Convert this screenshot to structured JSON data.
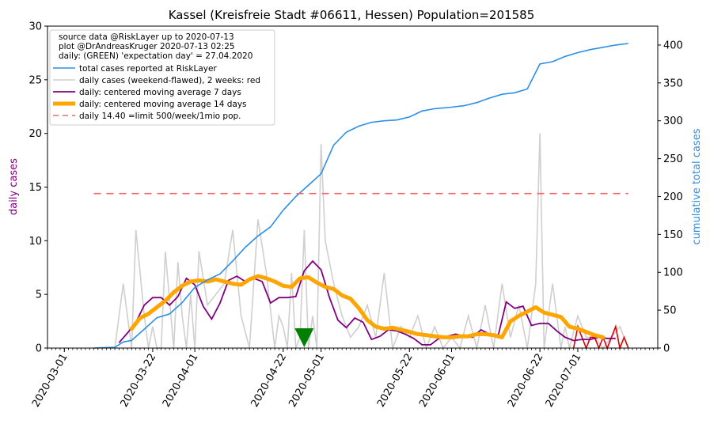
{
  "chart_data": {
    "type": "line",
    "title": "Kassel (Kreisfreie Stadt #06611, Hessen) Population=201585",
    "ylabel_left": "daily cases",
    "ylabel_right": "cumulative total cases",
    "ylim_left": [
      0,
      30
    ],
    "ylim_right": [
      0,
      425
    ],
    "xlim": [
      "2020-02-26",
      "2020-07-20"
    ],
    "grid": false,
    "legend_placement": "top-left",
    "left_ticks": [
      "0",
      "5",
      "10",
      "15",
      "20",
      "25",
      "30"
    ],
    "right_ticks": [
      "0",
      "50",
      "100",
      "150",
      "200",
      "250",
      "300",
      "350",
      "400"
    ],
    "x_ticks": [
      "2020-03-01",
      "2020-03-22",
      "2020-04-01",
      "2020-04-22",
      "2020-05-01",
      "2020-05-22",
      "2020-06-01",
      "2020-06-22",
      "2020-07-01"
    ],
    "legend_header": [
      "source data @RiskLayer up to 2020-07-13",
      "plot @DrAndreasKruger 2020-07-13 02:25",
      "daily: (GREEN) 'expectation day' = 27.04.2020"
    ],
    "legend": [
      {
        "label": "total cases reported at RiskLayer",
        "color": "#2a8fe6",
        "style": "line"
      },
      {
        "label": "daily cases (weekend-flawed), 2 weeks: red",
        "color": "#cfcfcf",
        "style": "line"
      },
      {
        "label": "daily: centered moving average 7 days",
        "color": "#800080",
        "style": "line"
      },
      {
        "label": "daily: centered moving average 14 days",
        "color": "#ffa500",
        "style": "thick"
      },
      {
        "label": "daily 14.40 =limit 500/week/1mio pop.",
        "color": "#ee6b6b",
        "style": "dashed"
      }
    ],
    "limit_line": {
      "value": 14.4,
      "start": "2020-03-08",
      "end": "2020-07-13"
    },
    "expectation_day": "2020-04-27",
    "series": [
      {
        "name": "total cases reported at RiskLayer",
        "axis": "right",
        "color": "#2a8fe6",
        "x": [
          "2020-03-08",
          "2020-03-13",
          "2020-03-15",
          "2020-03-17",
          "2020-03-20",
          "2020-03-23",
          "2020-03-26",
          "2020-03-29",
          "2020-04-01",
          "2020-04-04",
          "2020-04-07",
          "2020-04-10",
          "2020-04-13",
          "2020-04-16",
          "2020-04-19",
          "2020-04-22",
          "2020-04-25",
          "2020-04-28",
          "2020-05-01",
          "2020-05-04",
          "2020-05-07",
          "2020-05-10",
          "2020-05-13",
          "2020-05-16",
          "2020-05-19",
          "2020-05-22",
          "2020-05-25",
          "2020-05-28",
          "2020-06-01",
          "2020-06-04",
          "2020-06-07",
          "2020-06-10",
          "2020-06-13",
          "2020-06-16",
          "2020-06-19",
          "2020-06-22",
          "2020-06-25",
          "2020-06-28",
          "2020-07-01",
          "2020-07-04",
          "2020-07-07",
          "2020-07-10",
          "2020-07-13"
        ],
        "values": [
          0,
          1,
          8,
          10,
          25,
          40,
          45,
          60,
          80,
          90,
          98,
          115,
          133,
          148,
          160,
          182,
          200,
          215,
          230,
          268,
          285,
          293,
          298,
          300,
          301,
          305,
          313,
          316,
          318,
          320,
          324,
          330,
          335,
          337,
          342,
          375,
          378,
          385,
          390,
          394,
          397,
          400,
          402
        ]
      },
      {
        "name": "daily cases (weekend-flawed), 2 weeks: red",
        "axis": "left",
        "color": "#cfcfcf",
        "color_recent": "#e00000",
        "x": [
          "2020-03-13",
          "2020-03-15",
          "2020-03-17",
          "2020-03-18",
          "2020-03-19",
          "2020-03-20",
          "2020-03-21",
          "2020-03-22",
          "2020-03-23",
          "2020-03-24",
          "2020-03-25",
          "2020-03-27",
          "2020-03-28",
          "2020-03-29",
          "2020-03-30",
          "2020-03-31",
          "2020-04-01",
          "2020-04-02",
          "2020-04-04",
          "2020-04-06",
          "2020-04-08",
          "2020-04-10",
          "2020-04-12",
          "2020-04-14",
          "2020-04-16",
          "2020-04-18",
          "2020-04-20",
          "2020-04-21",
          "2020-04-22",
          "2020-04-23",
          "2020-04-24",
          "2020-04-25",
          "2020-04-26",
          "2020-04-27",
          "2020-04-28",
          "2020-04-29",
          "2020-04-30",
          "2020-05-01",
          "2020-05-02",
          "2020-05-04",
          "2020-05-06",
          "2020-05-08",
          "2020-05-10",
          "2020-05-12",
          "2020-05-14",
          "2020-05-16",
          "2020-05-18",
          "2020-05-20",
          "2020-05-22",
          "2020-05-24",
          "2020-05-26",
          "2020-05-28",
          "2020-05-30",
          "2020-06-01",
          "2020-06-03",
          "2020-06-05",
          "2020-06-07",
          "2020-06-09",
          "2020-06-11",
          "2020-06-13",
          "2020-06-15",
          "2020-06-17",
          "2020-06-19",
          "2020-06-21",
          "2020-06-22",
          "2020-06-23",
          "2020-06-25",
          "2020-06-27",
          "2020-06-28",
          "2020-06-29",
          "2020-07-01",
          "2020-07-03",
          "2020-07-05",
          "2020-07-07",
          "2020-07-09",
          "2020-07-11",
          "2020-07-13"
        ],
        "values": [
          0,
          6,
          0,
          11,
          7,
          3,
          0,
          2,
          0,
          0,
          9,
          0,
          8,
          3,
          0,
          5,
          0,
          9,
          4,
          5,
          6,
          11,
          3,
          0,
          12,
          7,
          0,
          3,
          2,
          0,
          7,
          0,
          1,
          11,
          0,
          3,
          0,
          19,
          10,
          6,
          3,
          1,
          2,
          4,
          1,
          7,
          0,
          2,
          1,
          3,
          0,
          2,
          0,
          1,
          0,
          3,
          0,
          4,
          0,
          6,
          1,
          4,
          0,
          6,
          20,
          0,
          6,
          0,
          2,
          0,
          3,
          1,
          1,
          0,
          1,
          2,
          0
        ],
        "recent_x": [
          "2020-06-30",
          "2020-07-01",
          "2020-07-02",
          "2020-07-03",
          "2020-07-04",
          "2020-07-05",
          "2020-07-06",
          "2020-07-07",
          "2020-07-08",
          "2020-07-09",
          "2020-07-10",
          "2020-07-11",
          "2020-07-12",
          "2020-07-13"
        ],
        "recent_values": [
          0,
          2,
          1,
          0,
          1,
          1,
          0,
          1,
          0,
          1,
          2,
          0,
          1,
          0
        ]
      },
      {
        "name": "daily: centered moving average 7 days",
        "axis": "left",
        "color": "#800080",
        "x": [
          "2020-03-14",
          "2020-03-16",
          "2020-03-18",
          "2020-03-20",
          "2020-03-22",
          "2020-03-24",
          "2020-03-26",
          "2020-03-28",
          "2020-03-30",
          "2020-04-01",
          "2020-04-03",
          "2020-04-05",
          "2020-04-07",
          "2020-04-09",
          "2020-04-11",
          "2020-04-13",
          "2020-04-15",
          "2020-04-17",
          "2020-04-19",
          "2020-04-21",
          "2020-04-23",
          "2020-04-25",
          "2020-04-27",
          "2020-04-29",
          "2020-05-01",
          "2020-05-03",
          "2020-05-05",
          "2020-05-07",
          "2020-05-09",
          "2020-05-11",
          "2020-05-13",
          "2020-05-15",
          "2020-05-17",
          "2020-05-19",
          "2020-05-21",
          "2020-05-23",
          "2020-05-25",
          "2020-05-27",
          "2020-05-29",
          "2020-05-31",
          "2020-06-02",
          "2020-06-04",
          "2020-06-06",
          "2020-06-08",
          "2020-06-10",
          "2020-06-12",
          "2020-06-14",
          "2020-06-16",
          "2020-06-18",
          "2020-06-20",
          "2020-06-22",
          "2020-06-24",
          "2020-06-26",
          "2020-06-28",
          "2020-06-30",
          "2020-07-02",
          "2020-07-04",
          "2020-07-06",
          "2020-07-08",
          "2020-07-10"
        ],
        "values": [
          0.5,
          1.4,
          2.4,
          4.0,
          4.7,
          4.7,
          4.0,
          4.8,
          6.5,
          5.9,
          3.9,
          2.7,
          4.2,
          6.3,
          6.7,
          6.2,
          6.5,
          6.2,
          4.2,
          4.7,
          4.7,
          4.8,
          7.2,
          8.1,
          7.3,
          4.7,
          2.6,
          1.9,
          2.8,
          2.4,
          0.8,
          1.1,
          1.7,
          1.6,
          1.3,
          0.9,
          0.3,
          0.3,
          0.9,
          1.1,
          1.3,
          1.1,
          1.0,
          1.7,
          1.3,
          1.0,
          4.3,
          3.7,
          3.9,
          2.1,
          2.3,
          2.3,
          1.6,
          1.0,
          0.7,
          0.8,
          0.8,
          1.0,
          0.9,
          0.9
        ]
      },
      {
        "name": "daily: centered moving average 14 days",
        "axis": "left",
        "color": "#ffa500",
        "x": [
          "2020-03-17",
          "2020-03-19",
          "2020-03-21",
          "2020-03-23",
          "2020-03-25",
          "2020-03-27",
          "2020-03-29",
          "2020-03-31",
          "2020-04-02",
          "2020-04-04",
          "2020-04-06",
          "2020-04-08",
          "2020-04-10",
          "2020-04-12",
          "2020-04-14",
          "2020-04-16",
          "2020-04-18",
          "2020-04-20",
          "2020-04-22",
          "2020-04-24",
          "2020-04-26",
          "2020-04-28",
          "2020-04-30",
          "2020-05-02",
          "2020-05-04",
          "2020-05-06",
          "2020-05-08",
          "2020-05-10",
          "2020-05-12",
          "2020-05-14",
          "2020-05-16",
          "2020-05-18",
          "2020-05-20",
          "2020-05-22",
          "2020-05-24",
          "2020-05-26",
          "2020-05-28",
          "2020-05-30",
          "2020-06-01",
          "2020-06-03",
          "2020-06-05",
          "2020-06-07",
          "2020-06-09",
          "2020-06-11",
          "2020-06-13",
          "2020-06-15",
          "2020-06-17",
          "2020-06-19",
          "2020-06-21",
          "2020-06-23",
          "2020-06-25",
          "2020-06-27",
          "2020-06-29",
          "2020-07-01",
          "2020-07-03",
          "2020-07-05",
          "2020-07-07"
        ],
        "values": [
          1.8,
          2.8,
          3.2,
          3.8,
          4.4,
          5.2,
          5.8,
          6.2,
          6.3,
          6.2,
          6.4,
          6.2,
          6.0,
          5.9,
          6.4,
          6.7,
          6.5,
          6.2,
          5.8,
          5.7,
          6.5,
          6.6,
          6.1,
          5.7,
          5.5,
          4.9,
          4.6,
          3.7,
          2.6,
          2.0,
          1.8,
          1.9,
          1.7,
          1.5,
          1.3,
          1.2,
          1.1,
          1.0,
          1.0,
          1.1,
          1.1,
          1.3,
          1.3,
          1.2,
          1.0,
          2.5,
          3.0,
          3.4,
          3.8,
          3.3,
          3.1,
          2.9,
          2.0,
          1.8,
          1.5,
          1.2,
          1.0
        ]
      }
    ]
  }
}
